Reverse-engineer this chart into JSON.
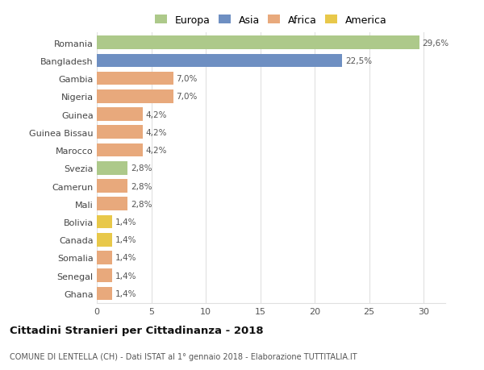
{
  "countries": [
    "Romania",
    "Bangladesh",
    "Gambia",
    "Nigeria",
    "Guinea",
    "Guinea Bissau",
    "Marocco",
    "Svezia",
    "Camerun",
    "Mali",
    "Bolivia",
    "Canada",
    "Somalia",
    "Senegal",
    "Ghana"
  ],
  "values": [
    29.6,
    22.5,
    7.0,
    7.0,
    4.2,
    4.2,
    4.2,
    2.8,
    2.8,
    2.8,
    1.4,
    1.4,
    1.4,
    1.4,
    1.4
  ],
  "labels": [
    "29,6%",
    "22,5%",
    "7,0%",
    "7,0%",
    "4,2%",
    "4,2%",
    "4,2%",
    "2,8%",
    "2,8%",
    "2,8%",
    "1,4%",
    "1,4%",
    "1,4%",
    "1,4%",
    "1,4%"
  ],
  "colors": [
    "#adc98a",
    "#6e8fc2",
    "#e8a97c",
    "#e8a97c",
    "#e8a97c",
    "#e8a97c",
    "#e8a97c",
    "#adc98a",
    "#e8a97c",
    "#e8a97c",
    "#e8c84a",
    "#e8c84a",
    "#e8a97c",
    "#e8a97c",
    "#e8a97c"
  ],
  "legend_labels": [
    "Europa",
    "Asia",
    "Africa",
    "America"
  ],
  "legend_colors": [
    "#adc98a",
    "#6e8fc2",
    "#e8a97c",
    "#e8c84a"
  ],
  "title": "Cittadini Stranieri per Cittadinanza - 2018",
  "subtitle": "COMUNE DI LENTELLA (CH) - Dati ISTAT al 1° gennaio 2018 - Elaborazione TUTTITALIA.IT",
  "xlim": [
    0,
    32
  ],
  "xticks": [
    0,
    5,
    10,
    15,
    20,
    25,
    30
  ],
  "bg_color": "#ffffff",
  "grid_color": "#e0e0e0",
  "bar_height": 0.75
}
